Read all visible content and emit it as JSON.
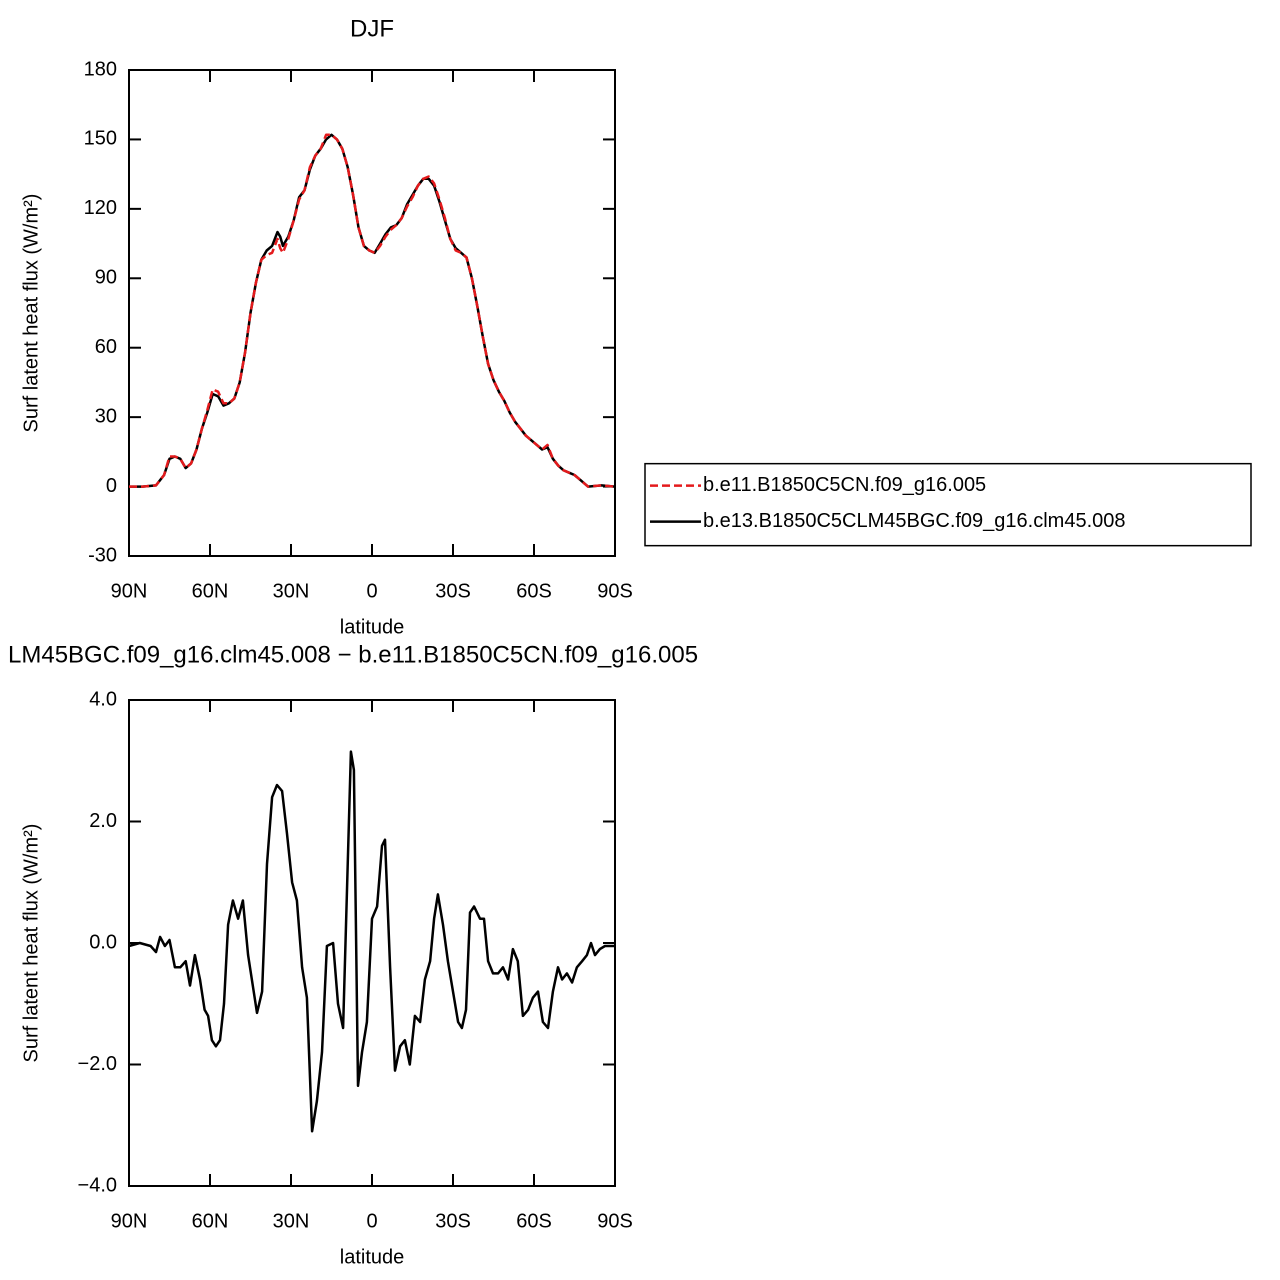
{
  "chart_data": [
    {
      "type": "line",
      "title": "DJF",
      "xlabel": "latitude",
      "ylabel": "Surf latent heat flux (W/m²)",
      "xlim": [
        90,
        -90
      ],
      "xticks": [
        {
          "value": 90,
          "label": "90N"
        },
        {
          "value": 60,
          "label": "60N"
        },
        {
          "value": 30,
          "label": "30N"
        },
        0,
        {
          "value": -30,
          "label": "30S"
        },
        {
          "value": -60,
          "label": "60S"
        },
        {
          "value": -90,
          "label": "90S"
        }
      ],
      "ylim": [
        -30,
        180
      ],
      "yticks": [
        -30,
        0,
        30,
        60,
        90,
        120,
        150,
        180
      ],
      "legend": "right",
      "x": [
        90,
        85,
        80,
        77,
        75,
        73,
        71,
        69,
        67,
        65,
        63,
        61,
        59,
        57,
        55,
        53,
        51,
        49,
        47,
        45,
        43,
        41,
        39,
        37,
        35,
        34,
        33,
        31,
        29,
        27,
        25,
        23,
        21,
        19,
        17,
        15,
        13,
        11,
        9,
        7,
        5,
        3,
        1,
        -1,
        -3,
        -5,
        -7,
        -9,
        -11,
        -13,
        -15,
        -17,
        -19,
        -21,
        -23,
        -25,
        -27,
        -29,
        -31,
        -33,
        -35,
        -37,
        -39,
        -41,
        -43,
        -45,
        -47,
        -49,
        -51,
        -53,
        -55,
        -57,
        -60,
        -63,
        -65,
        -67,
        -69,
        -71,
        -73,
        -75,
        -77,
        -80,
        -85,
        -90
      ],
      "series": [
        {
          "name": "b.e11.B1850C5CN.f09_g16.005",
          "color": "#e41a1c",
          "dash": "dashed",
          "values": [
            0,
            0,
            0.5,
            5,
            13,
            13,
            12,
            8,
            10,
            16,
            25,
            33,
            42,
            41,
            36,
            36,
            38,
            45,
            58,
            75,
            88,
            98,
            100,
            101,
            107,
            103,
            101,
            107,
            115,
            124,
            128,
            138,
            143,
            146,
            152,
            152,
            150,
            146,
            138,
            126,
            112,
            104,
            102,
            101,
            104,
            108,
            111,
            113,
            116,
            121,
            125,
            130,
            133,
            134,
            131,
            124,
            116,
            107,
            102,
            101,
            99,
            90,
            78,
            65,
            53,
            46,
            41,
            37,
            32,
            28,
            25,
            22,
            19,
            16,
            18,
            12,
            9,
            7,
            6,
            5,
            3,
            0,
            0.5,
            0
          ]
        },
        {
          "name": "b.e13.B1850C5CLM45BGC.f09_g16.clm45.008",
          "color": "#000000",
          "dash": "solid",
          "values": [
            0,
            0,
            0.5,
            5,
            12,
            13,
            12,
            8,
            10,
            16,
            25,
            32,
            40,
            39,
            35,
            36,
            38,
            45,
            58,
            75,
            88,
            98,
            102,
            104,
            110,
            108,
            104,
            108,
            115,
            125,
            128,
            137,
            143,
            146,
            150,
            152,
            150,
            146,
            138,
            126,
            112,
            104,
            102,
            101,
            105,
            109,
            112,
            113,
            116,
            122,
            126,
            130,
            133,
            133,
            130,
            123,
            115,
            107,
            103,
            101,
            99,
            90,
            78,
            65,
            53,
            46,
            41,
            37,
            32,
            28,
            25,
            22,
            19,
            16,
            17,
            12,
            9,
            7,
            6,
            5,
            3,
            0,
            0.5,
            0
          ]
        }
      ]
    },
    {
      "type": "line",
      "title": "LM45BGC.f09_g16.clm45.008 − b.e11.B1850C5CN.f09_g16.005",
      "xlabel": "latitude",
      "ylabel": "Surf latent heat flux (W/m²)",
      "xlim": [
        90,
        -90
      ],
      "xticks": [
        {
          "value": 90,
          "label": "90N"
        },
        {
          "value": 60,
          "label": "60N"
        },
        {
          "value": 30,
          "label": "30N"
        },
        0,
        {
          "value": -30,
          "label": "30S"
        },
        {
          "value": -60,
          "label": "60S"
        },
        {
          "value": -90,
          "label": "90S"
        }
      ],
      "ylim": [
        -4,
        4
      ],
      "yticks": [
        {
          "value": -4,
          "label": "−4.0"
        },
        {
          "value": -2,
          "label": "−2.0"
        },
        {
          "value": 0,
          "label": "0.0"
        },
        {
          "value": 2,
          "label": "2.0"
        },
        {
          "value": 4,
          "label": "4.0"
        }
      ],
      "x": [
        90,
        86,
        82,
        80,
        78.5,
        76.7,
        75,
        73,
        71,
        69,
        67.4,
        65.6,
        63.7,
        62,
        60.7,
        59.3,
        57.8,
        56.3,
        54.8,
        53.3,
        51.5,
        49.6,
        47.8,
        45.9,
        42.6,
        40.7,
        38.9,
        37,
        35.2,
        33.3,
        31.5,
        29.6,
        27.8,
        25.9,
        24.1,
        22.2,
        20.4,
        18.5,
        16.7,
        14.4,
        12.6,
        10.7,
        7.8,
        6.7,
        5.2,
        3.7,
        1.9,
        0,
        -1.9,
        -3.7,
        -4.8,
        -6.7,
        -8.5,
        -10.4,
        -12.2,
        -14,
        -15.9,
        -17.8,
        -19.6,
        -21.5,
        -23,
        -24.4,
        -26.3,
        -28.1,
        -30,
        -31.9,
        -33.3,
        -34.8,
        -36.3,
        -37.8,
        -40,
        -41.5,
        -43,
        -44.8,
        -46.7,
        -48.5,
        -50.4,
        -52.2,
        -54,
        -55.9,
        -57.8,
        -59.6,
        -61.5,
        -63.3,
        -65.2,
        -67,
        -68.9,
        -70.4,
        -72.2,
        -74.1,
        -75.9,
        -77.8,
        -79.6,
        -81.1,
        -82.6,
        -84.4,
        -86.3,
        -88.1,
        -90
      ],
      "series": [
        {
          "color": "#000000",
          "dash": "solid",
          "values": [
            -0.05,
            0,
            -0.05,
            -0.15,
            0.1,
            -0.05,
            0.05,
            -0.4,
            -0.4,
            -0.3,
            -0.7,
            -0.2,
            -0.6,
            -1.1,
            -1.2,
            -1.6,
            -1.7,
            -1.6,
            -1.0,
            0.3,
            0.7,
            0.4,
            0.7,
            -0.2,
            -1.15,
            -0.8,
            1.3,
            2.4,
            2.6,
            2.5,
            1.8,
            1.0,
            0.7,
            -0.4,
            -0.9,
            -3.1,
            -2.6,
            -1.8,
            -0.05,
            0,
            -1.0,
            -1.4,
            3.15,
            2.85,
            -2.35,
            -1.8,
            -1.3,
            0.4,
            0.6,
            1.6,
            1.7,
            -0.4,
            -2.1,
            -1.7,
            -1.6,
            -2.0,
            -1.2,
            -1.3,
            -0.6,
            -0.3,
            0.4,
            0.8,
            0.3,
            -0.3,
            -0.8,
            -1.3,
            -1.4,
            -1.1,
            0.5,
            0.6,
            0.4,
            0.4,
            -0.3,
            -0.5,
            -0.5,
            -0.4,
            -0.6,
            -0.1,
            -0.3,
            -1.2,
            -1.1,
            -0.9,
            -0.8,
            -1.3,
            -1.4,
            -0.8,
            -0.4,
            -0.6,
            -0.5,
            -0.65,
            -0.4,
            -0.3,
            -0.2,
            0,
            -0.2,
            -0.1,
            -0.05,
            -0.05,
            -0.05
          ]
        }
      ]
    }
  ]
}
